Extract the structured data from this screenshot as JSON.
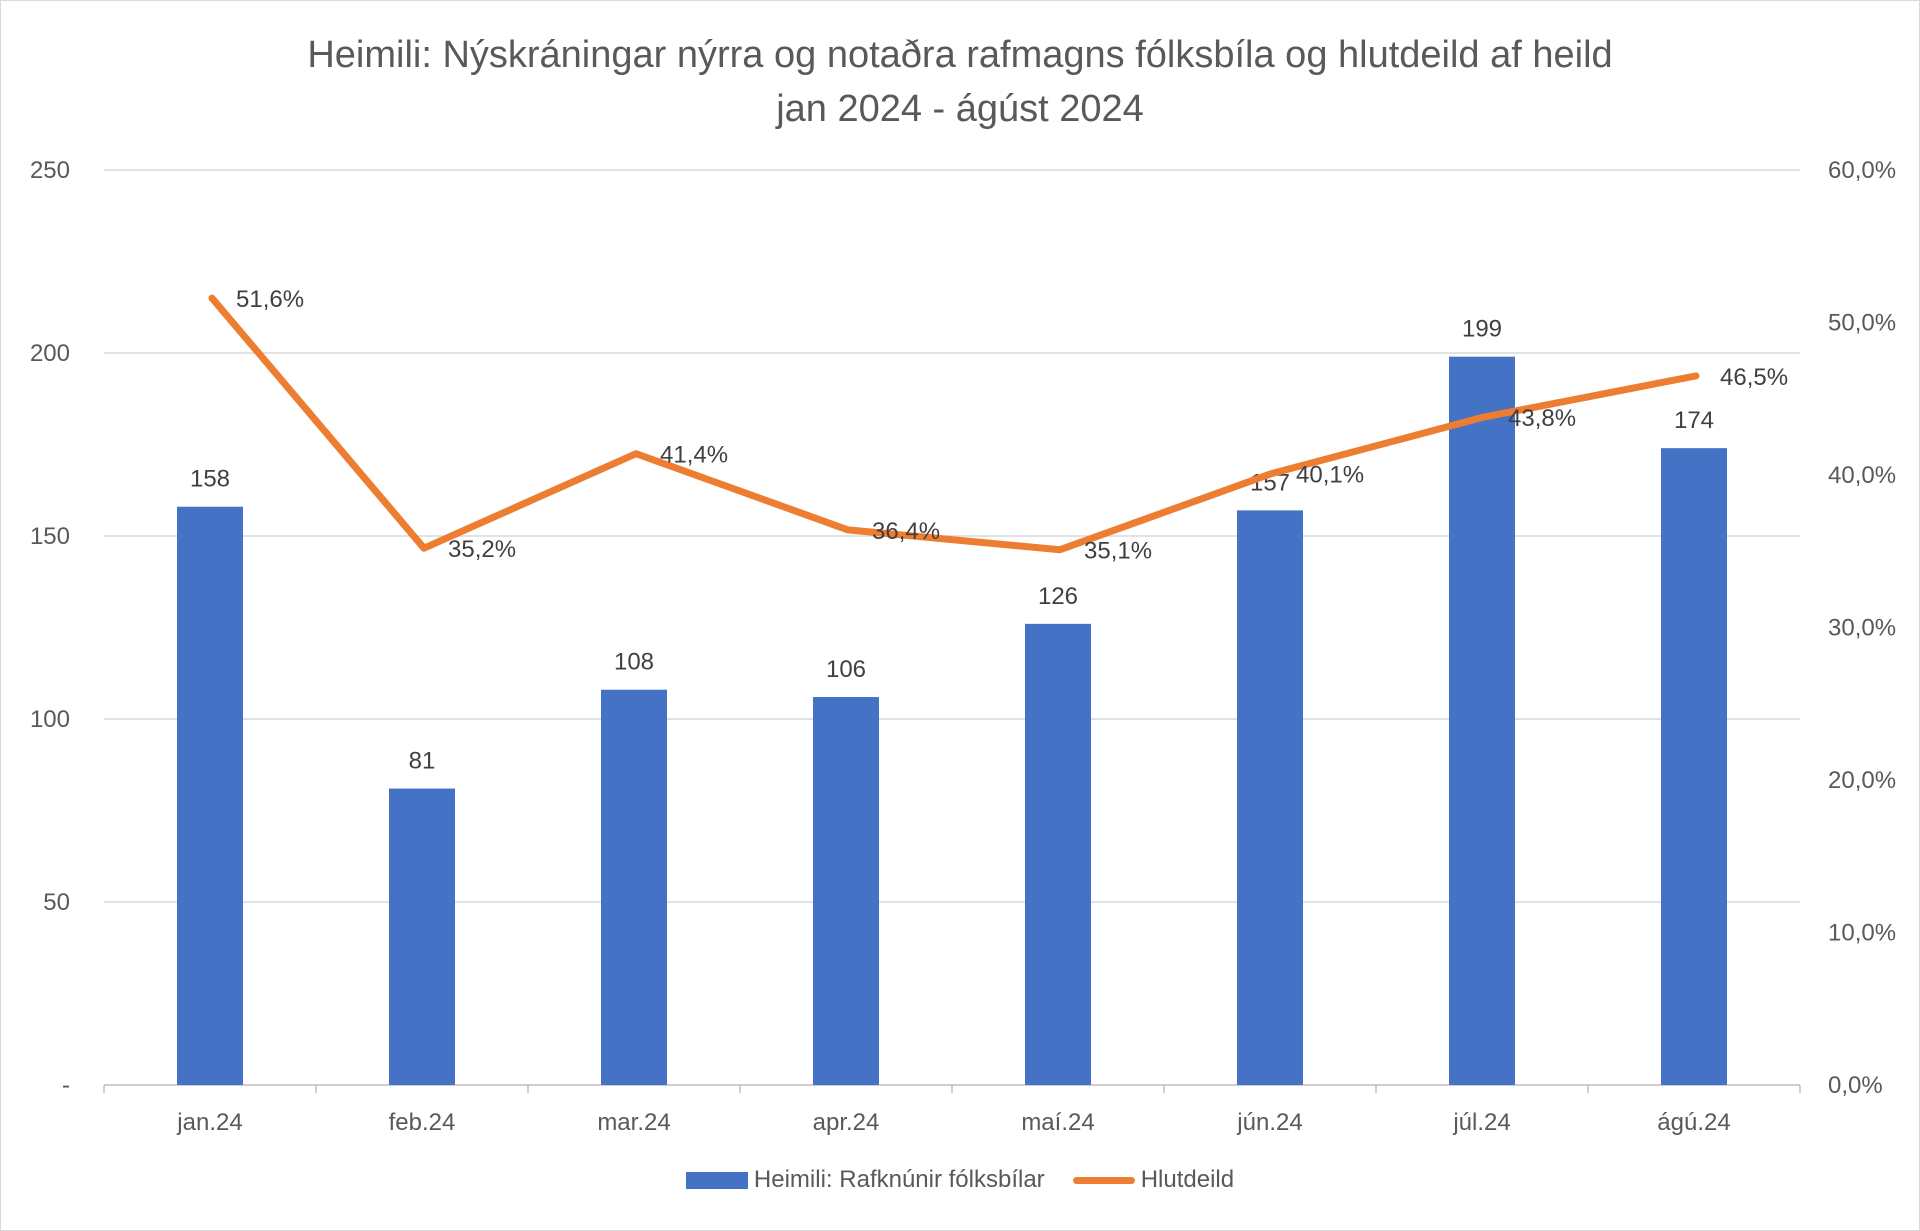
{
  "chart_data": {
    "type": "bar",
    "title": "Heimili: Nýskráningar nýrra og notaðra rafmagns fólksbíla og hlutdeild af heild",
    "subtitle": "jan 2024 - ágúst 2024",
    "categories": [
      "jan.24",
      "feb.24",
      "mar.24",
      "apr.24",
      "maí.24",
      "jún.24",
      "júl.24",
      "ágú.24"
    ],
    "series": [
      {
        "name": "Heimili: Rafknúnir fólksbílar",
        "type": "bar",
        "axis": "left",
        "color": "#4472C4",
        "values": [
          158,
          81,
          108,
          106,
          126,
          157,
          199,
          174
        ],
        "labels": [
          "158",
          "81",
          "108",
          "106",
          "126",
          "157",
          "199",
          "174"
        ]
      },
      {
        "name": "Hlutdeild",
        "type": "line",
        "axis": "right",
        "color": "#ED7D31",
        "values": [
          51.6,
          35.2,
          41.4,
          36.4,
          35.1,
          40.1,
          43.8,
          46.5
        ],
        "labels": [
          "51,6%",
          "35,2%",
          "41,4%",
          "36,4%",
          "35,1%",
          "40,1%",
          "43,8%",
          "46,5%"
        ]
      }
    ],
    "y_left": {
      "min": 0,
      "max": 250,
      "ticks": [
        0,
        50,
        100,
        150,
        200,
        250
      ],
      "tick_labels": [
        "-",
        "50",
        "100",
        "150",
        "200",
        "250"
      ]
    },
    "y_right": {
      "min": 0,
      "max": 60,
      "ticks": [
        0,
        10,
        20,
        30,
        40,
        50,
        60
      ],
      "tick_labels": [
        "0,0%",
        "10,0%",
        "20,0%",
        "30,0%",
        "40,0%",
        "50,0%",
        "60,0%"
      ]
    },
    "grid": true,
    "legend": "bottom-center"
  }
}
